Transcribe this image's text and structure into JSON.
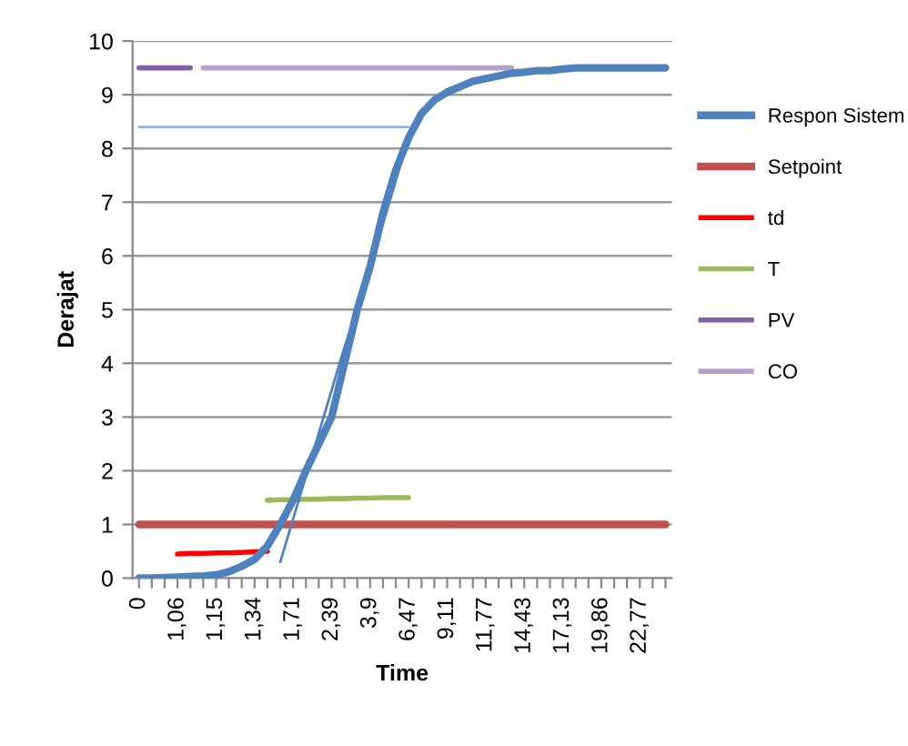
{
  "chart_data": {
    "type": "line",
    "xlabel": "Time",
    "ylabel": "Derajat",
    "categories": [
      "0",
      null,
      null,
      "1,06",
      null,
      null,
      "1,15",
      null,
      null,
      "1,34",
      null,
      null,
      "1,71",
      null,
      null,
      "2,39",
      null,
      null,
      "3,9",
      null,
      null,
      "6,47",
      null,
      null,
      "9,11",
      null,
      null,
      "11,77",
      null,
      null,
      "14,43",
      null,
      null,
      "17,13",
      null,
      null,
      "19,86",
      null,
      null,
      "22,77",
      null,
      null
    ],
    "ylim": [
      0,
      10
    ],
    "yticks": [
      0,
      1,
      2,
      3,
      4,
      5,
      6,
      7,
      8,
      9,
      10
    ],
    "grid": "y",
    "legend": "right",
    "marker": "none",
    "line_style": "solid",
    "series": [
      {
        "name": "Respon Sistem",
        "color": "#4f81bd",
        "values": [
          0,
          0,
          0.01,
          0.02,
          0.03,
          0.04,
          0.06,
          0.12,
          0.22,
          0.35,
          0.6,
          1.0,
          1.45,
          2.0,
          2.5,
          3.0,
          4.0,
          5.0,
          5.8,
          6.8,
          7.6,
          8.2,
          8.65,
          8.9,
          9.05,
          9.15,
          9.25,
          9.3,
          9.35,
          9.4,
          9.42,
          9.45,
          9.45,
          9.48,
          9.5,
          9.5,
          9.5,
          9.5,
          9.5,
          9.5,
          9.5,
          9.5
        ]
      },
      {
        "name": "Setpoint",
        "color": "#c0504d",
        "values": [
          1,
          1,
          1,
          1,
          1,
          1,
          1,
          1,
          1,
          1,
          1,
          1,
          1,
          1,
          1,
          1,
          1,
          1,
          1,
          1,
          1,
          1,
          1,
          1,
          1,
          1,
          1,
          1,
          1,
          1,
          1,
          1,
          1,
          1,
          1,
          1,
          1,
          1,
          1,
          1,
          1,
          1
        ]
      },
      {
        "name": "td",
        "color": "#ff0000",
        "values": [
          null,
          null,
          null,
          0.45,
          0.46,
          0.46,
          0.47,
          0.47,
          0.48,
          0.49,
          0.5,
          null,
          null,
          null,
          null,
          null,
          null,
          null,
          null,
          null,
          null,
          null,
          null,
          null,
          null,
          null,
          null,
          null,
          null,
          null,
          null,
          null,
          null,
          null,
          null,
          null,
          null,
          null,
          null,
          null,
          null,
          null
        ]
      },
      {
        "name": "T",
        "color": "#9bbb59",
        "values": [
          null,
          null,
          null,
          null,
          null,
          null,
          null,
          null,
          null,
          null,
          1.45,
          1.46,
          1.46,
          1.47,
          1.47,
          1.48,
          1.48,
          1.49,
          1.49,
          1.5,
          1.5,
          1.5,
          null,
          null,
          null,
          null,
          null,
          null,
          null,
          null,
          null,
          null,
          null,
          null,
          null,
          null,
          null,
          null,
          null,
          null,
          null,
          null
        ]
      },
      {
        "name": "PV",
        "color": "#8064a2",
        "values": [
          9.5,
          9.5,
          9.5,
          9.5,
          9.5,
          null,
          null,
          null,
          null,
          null,
          null,
          null,
          null,
          null,
          null,
          null,
          null,
          null,
          null,
          null,
          null,
          null,
          null,
          null,
          null,
          null,
          null,
          null,
          null,
          null,
          null,
          null,
          null,
          null,
          null,
          null,
          null,
          null,
          null,
          null,
          null,
          null
        ]
      },
      {
        "name": "CO",
        "color": "#b3a2c7",
        "values": [
          null,
          null,
          null,
          null,
          null,
          9.5,
          9.5,
          9.5,
          9.5,
          9.5,
          9.5,
          9.5,
          9.5,
          9.5,
          9.5,
          9.5,
          9.5,
          9.5,
          9.5,
          9.5,
          9.5,
          9.5,
          9.5,
          9.5,
          9.5,
          9.5,
          9.5,
          9.5,
          9.5,
          9.5,
          null,
          null,
          null,
          null,
          null,
          null,
          null,
          null,
          null,
          null,
          null,
          null
        ]
      },
      {
        "color": "#8db4e2",
        "values": [
          8.4,
          8.4,
          8.4,
          8.4,
          8.4,
          8.4,
          8.4,
          8.4,
          8.4,
          8.4,
          8.4,
          8.4,
          8.4,
          8.4,
          8.4,
          8.4,
          8.4,
          8.4,
          8.4,
          8.4,
          8.4,
          8.4,
          null,
          null,
          null,
          null,
          null,
          null,
          null,
          null,
          null,
          null,
          null,
          null,
          null,
          null,
          null,
          null,
          null,
          null,
          null,
          null
        ]
      },
      {
        "color": "#4f81bd",
        "values": [
          null,
          null,
          null,
          null,
          null,
          null,
          null,
          null,
          null,
          null,
          null,
          0.3,
          1.1,
          1.9,
          2.7,
          3.5,
          4.3,
          5.0,
          5.8,
          6.6,
          7.4,
          8.2,
          null,
          null,
          null,
          null,
          null,
          null,
          null,
          null,
          null,
          null,
          null,
          null,
          null,
          null,
          null,
          null,
          null,
          null,
          null,
          null
        ]
      }
    ]
  }
}
